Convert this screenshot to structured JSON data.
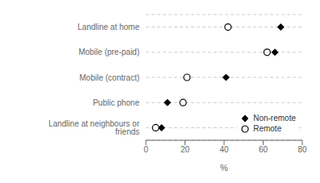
{
  "chart_data": {
    "type": "dot",
    "categories": [
      "Landline at neighbours or friends",
      "Public phone",
      "Mobile (contract)",
      "Mobile (pre-paid)",
      "Landline at home"
    ],
    "series": [
      {
        "name": "Non-remote",
        "color": "#000000",
        "marker": "diamond",
        "values": [
          8,
          11,
          41,
          66,
          69
        ]
      },
      {
        "name": "Remote",
        "color": "#000000",
        "marker": "open_circle",
        "values": [
          5,
          19,
          21,
          62,
          42
        ]
      }
    ],
    "xlabel": "%",
    "xlim": [
      0,
      80
    ],
    "xticks": [
      0,
      20,
      40,
      60,
      80
    ],
    "grid": true,
    "legend": "lower right"
  }
}
